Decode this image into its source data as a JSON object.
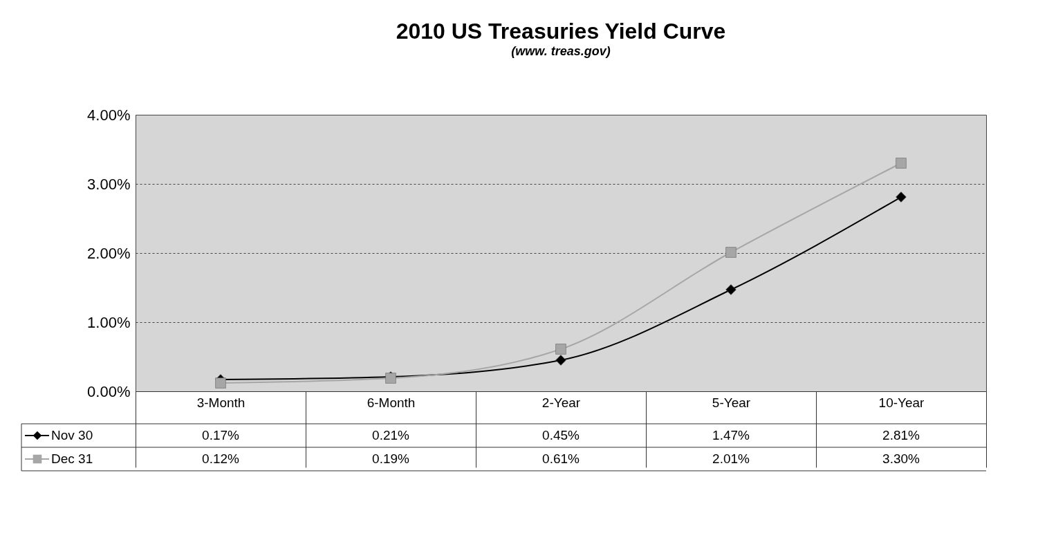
{
  "chart_data": {
    "type": "line",
    "title": "2010 US Treasuries Yield Curve",
    "subtitle": "(www. treas.gov)",
    "categories": [
      "3-Month",
      "6-Month",
      "2-Year",
      "5-Year",
      "10-Year"
    ],
    "series": [
      {
        "name": "Nov 30",
        "color": "#000000",
        "marker": "diamond",
        "values": [
          0.17,
          0.21,
          0.45,
          1.47,
          2.81
        ],
        "value_labels": [
          "0.17%",
          "0.21%",
          "0.45%",
          "1.47%",
          "2.81%"
        ]
      },
      {
        "name": "Dec 31",
        "color": "#a6a6a6",
        "marker": "square",
        "values": [
          0.12,
          0.19,
          0.61,
          2.01,
          3.3
        ],
        "value_labels": [
          "0.12%",
          "0.19%",
          "0.61%",
          "2.01%",
          "3.30%"
        ]
      }
    ],
    "ylim": [
      0,
      4
    ],
    "yticks": [
      {
        "value": 0,
        "label": "0.00%"
      },
      {
        "value": 1,
        "label": "1.00%"
      },
      {
        "value": 2,
        "label": "2.00%"
      },
      {
        "value": 3,
        "label": "3.00%"
      },
      {
        "value": 4,
        "label": "4.00%"
      }
    ],
    "grid": "y",
    "legend": "bottom left"
  }
}
